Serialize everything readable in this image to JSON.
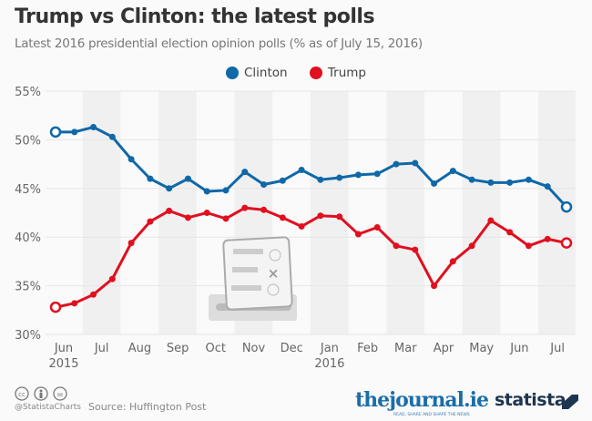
{
  "chart_data": {
    "type": "line",
    "title": "Trump vs Clinton: the latest polls",
    "subtitle": "Latest 2016 presidential election opinion polls (% as of July 15, 2016)",
    "ylim": [
      30,
      55
    ],
    "yticks": [
      "30%",
      "35%",
      "40%",
      "45%",
      "50%",
      "55%"
    ],
    "ytick_values": [
      30,
      35,
      40,
      45,
      50,
      55
    ],
    "xticks": [
      "Jun",
      "Jul",
      "Aug",
      "Sep",
      "Oct",
      "Nov",
      "Dec",
      "Jan",
      "Feb",
      "Mar",
      "Apr",
      "May",
      "Jun",
      "Jul"
    ],
    "xtick_years": {
      "0": "2015",
      "7": "2016"
    },
    "grid": true,
    "legend": "top-center",
    "series": [
      {
        "name": "Clinton",
        "color": "#0f68a8",
        "values": [
          50.8,
          50.8,
          51.3,
          50.3,
          48.0,
          46.0,
          45.0,
          46.0,
          44.7,
          44.8,
          46.7,
          45.4,
          45.8,
          46.9,
          45.9,
          46.1,
          46.4,
          46.5,
          47.5,
          47.6,
          45.5,
          46.8,
          45.9,
          45.6,
          45.6,
          45.9,
          45.2,
          43.1
        ]
      },
      {
        "name": "Trump",
        "color": "#e0101f",
        "values": [
          32.8,
          33.2,
          34.1,
          35.7,
          39.4,
          41.6,
          42.7,
          42.0,
          42.5,
          41.9,
          43.0,
          42.8,
          42.0,
          41.1,
          42.2,
          42.1,
          40.3,
          41.0,
          39.1,
          38.7,
          35.0,
          37.5,
          39.1,
          41.7,
          40.5,
          39.1,
          39.8,
          39.4
        ]
      }
    ]
  },
  "footer": {
    "handle": "@StatistaCharts",
    "source": "Source: Huffington Post",
    "journal_logo": "thejournal.ie",
    "journal_tagline": "READ, SHARE AND SHAPE THE NEWS",
    "statista_logo": "statista"
  }
}
